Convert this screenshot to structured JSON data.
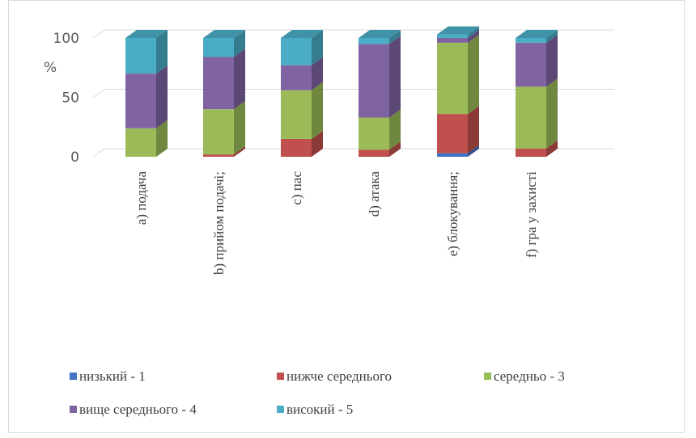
{
  "chart_data": {
    "type": "bar",
    "stacked": true,
    "three_d": true,
    "ylabel": "%",
    "ylim": [
      0,
      100
    ],
    "yticks": [
      "0",
      "50",
      "100"
    ],
    "grid": true,
    "legend_position": "bottom",
    "categories": [
      "a) подача",
      "b) прийом подачі;",
      "c) пас",
      "d) атака",
      "e) блокування;",
      "f) гра у захисті"
    ],
    "series": [
      {
        "name": "низький - 1",
        "color": "#4472C4",
        "values": [
          0,
          0,
          0,
          0,
          3,
          0
        ]
      },
      {
        "name": "нижче середнього",
        "color": "#C0504D",
        "values": [
          0,
          2,
          15,
          6,
          33,
          7
        ]
      },
      {
        "name": "середньо - 3",
        "color": "#9BBB59",
        "values": [
          24,
          38,
          41,
          27,
          60,
          52
        ]
      },
      {
        "name": "вище середнього  -  4",
        "color": "#8064A2",
        "values": [
          46,
          44,
          21,
          62,
          4,
          37
        ]
      },
      {
        "name": "високий - 5",
        "color": "#4BACC6",
        "values": [
          30,
          16,
          23,
          5,
          3,
          4
        ]
      }
    ]
  }
}
